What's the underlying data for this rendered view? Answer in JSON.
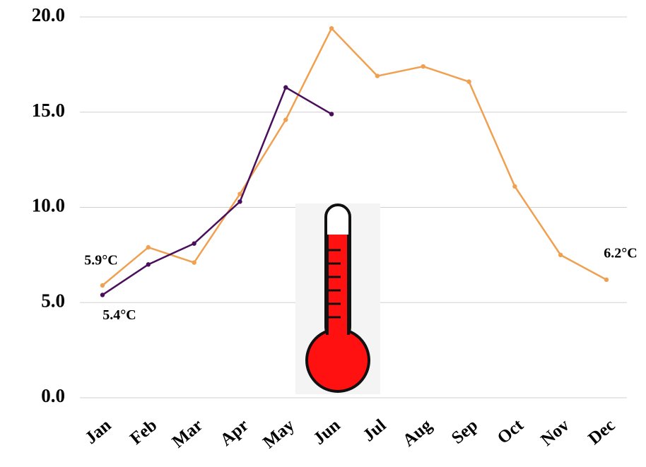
{
  "chart_data": {
    "type": "line",
    "categories": [
      "Jan",
      "Feb",
      "Mar",
      "Apr",
      "May",
      "Jun",
      "Jul",
      "Aug",
      "Sep",
      "Oct",
      "Nov",
      "Dec"
    ],
    "series": [
      {
        "color": "#f0a050",
        "values": [
          5.9,
          7.9,
          7.1,
          10.7,
          14.6,
          19.4,
          16.9,
          17.4,
          16.6,
          11.1,
          7.5,
          6.2
        ],
        "value_labels": [
          "5.9°C",
          null,
          null,
          null,
          null,
          null,
          null,
          null,
          null,
          null,
          null,
          "6.2°C"
        ]
      },
      {
        "color": "#4a0f5c",
        "values": [
          5.4,
          7.0,
          8.1,
          10.3,
          16.3,
          14.9,
          null,
          null,
          null,
          null,
          null,
          null
        ],
        "value_labels": [
          "5.4°C",
          null,
          null,
          null,
          null,
          null,
          null,
          null,
          null,
          null,
          null,
          null
        ]
      }
    ],
    "ylim": [
      0,
      20
    ],
    "yticks": [
      {
        "value": 0,
        "label": "0.0"
      },
      {
        "value": 5,
        "label": "5.0"
      },
      {
        "value": 10,
        "label": "10.0"
      },
      {
        "value": 15,
        "label": "15.0"
      },
      {
        "value": 20,
        "label": "20.0"
      }
    ],
    "grid": true
  }
}
